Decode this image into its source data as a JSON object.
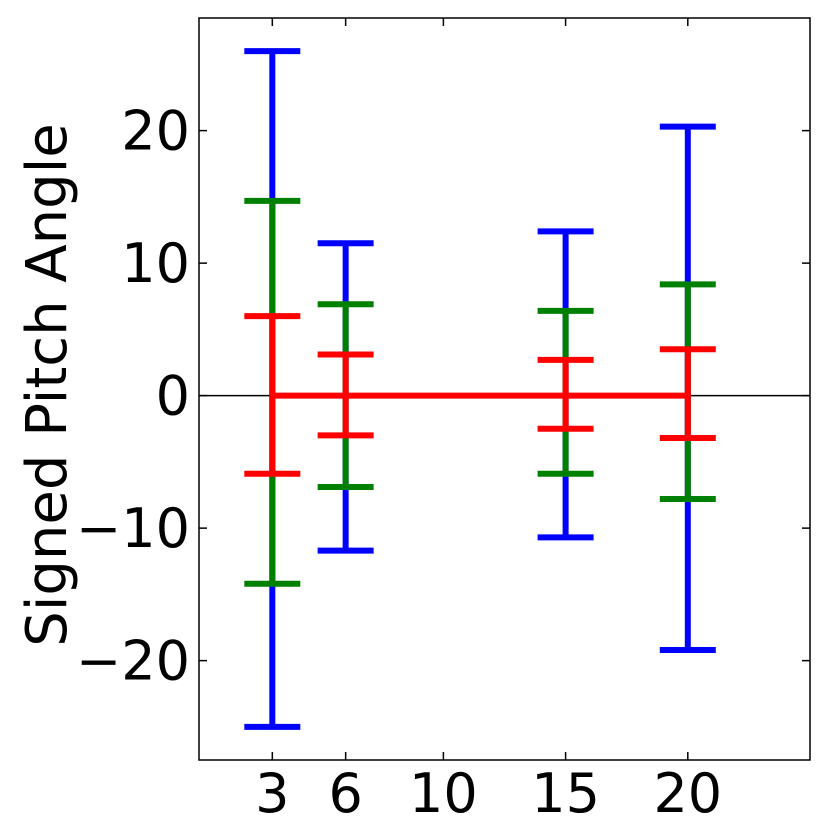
{
  "chart_data": {
    "type": "errorbar",
    "title": "",
    "xlabel": "",
    "ylabel": "Signed Pitch Angle",
    "xlim": [
      0,
      25
    ],
    "ylim": [
      -27.5,
      28.5
    ],
    "x_ticks": [
      3,
      6,
      10,
      15,
      20
    ],
    "x_tick_labels": [
      "3",
      "6",
      "10",
      "15",
      "20"
    ],
    "y_ticks": [
      -20,
      -10,
      0,
      10,
      20
    ],
    "y_tick_labels": [
      "−20",
      "−10",
      "0",
      "10",
      "20"
    ],
    "zero_line": true,
    "grid": false,
    "legend": null,
    "x": [
      3,
      6,
      15,
      20
    ],
    "center_line": {
      "color": "#ff0000",
      "values": [
        0,
        0,
        0,
        0
      ]
    },
    "series": [
      {
        "color": "#0000ff",
        "lower": [
          -25,
          -11.7,
          -10.7,
          -19.2
        ],
        "upper": [
          26,
          11.5,
          12.4,
          20.3
        ]
      },
      {
        "color": "#008000",
        "lower": [
          -14.2,
          -6.9,
          -5.9,
          -7.8
        ],
        "upper": [
          14.7,
          6.9,
          6.4,
          8.4
        ]
      },
      {
        "color": "#ff0000",
        "lower": [
          -5.9,
          -3,
          -2.5,
          -3.2
        ],
        "upper": [
          6,
          3.1,
          2.7,
          3.5
        ]
      }
    ]
  }
}
